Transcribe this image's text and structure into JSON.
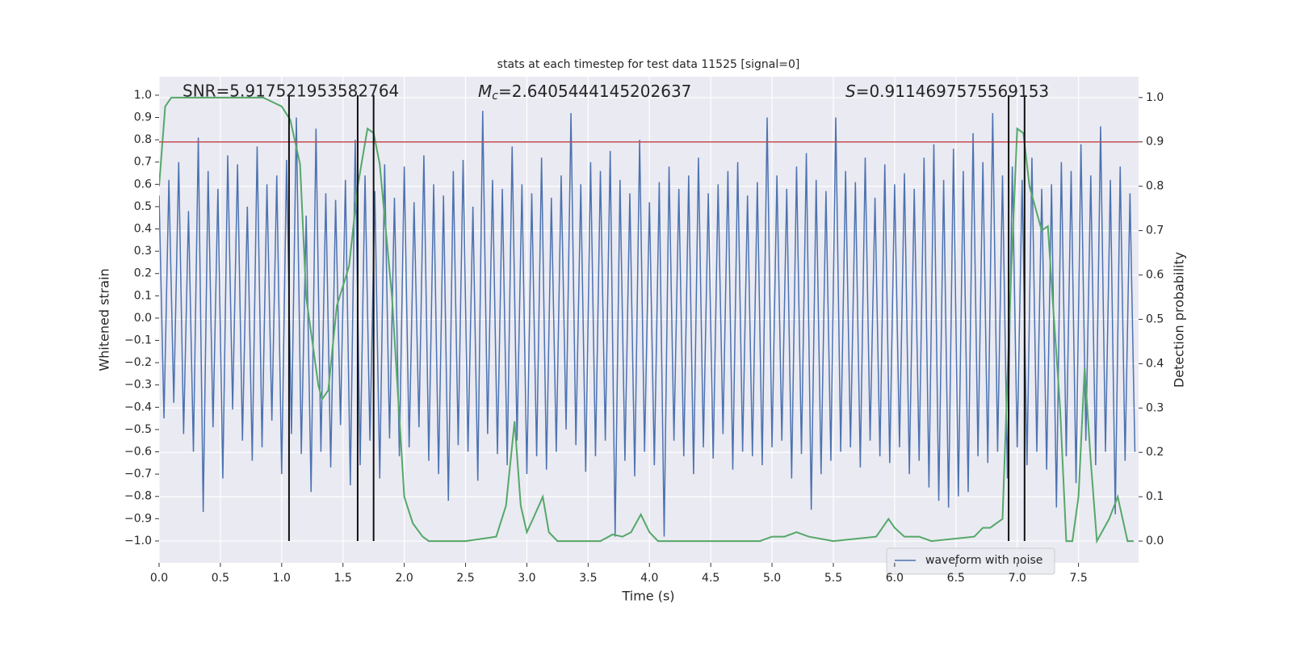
{
  "chart_data": {
    "type": "line",
    "title": "stats at each timestep for test data 11525 [signal=0]",
    "xlabel": "Time (s)",
    "ylabel": "Whitened strain",
    "y2label": "Detection probability",
    "annotations": [
      {
        "text": "SNR=5.917521953582764"
      },
      {
        "symbol": "M",
        "sub": "c",
        "text": "=2.6405444145202637"
      },
      {
        "symbol": "S",
        "text": "=0.9114697575569153"
      }
    ],
    "xlim": [
      0,
      7.99
    ],
    "ylim": [
      -1.098,
      1.083
    ],
    "y2lim": [
      -0.049,
      1.047
    ],
    "xticks": [
      {
        "value": 0,
        "label": "0.0"
      },
      0.5,
      {
        "value": 1,
        "label": "1.0"
      },
      1.5,
      {
        "value": 2,
        "label": "2.0"
      },
      2.5,
      {
        "value": 3,
        "label": "3.0"
      },
      3.5,
      {
        "value": 4,
        "label": "4.0"
      },
      4.5,
      {
        "value": 5,
        "label": "5.0"
      },
      5.5,
      {
        "value": 6,
        "label": "6.0"
      },
      6.5,
      {
        "value": 7,
        "label": "7.0"
      },
      7.5
    ],
    "yticks": [
      {
        "value": -1,
        "label": "−1.0"
      },
      {
        "value": -0.9,
        "label": "−0.9"
      },
      {
        "value": -0.8,
        "label": "−0.8"
      },
      {
        "value": -0.7,
        "label": "−0.7"
      },
      {
        "value": -0.6,
        "label": "−0.6"
      },
      {
        "value": -0.5,
        "label": "−0.5"
      },
      {
        "value": -0.4,
        "label": "−0.4"
      },
      {
        "value": -0.3,
        "label": "−0.3"
      },
      {
        "value": -0.2,
        "label": "−0.2"
      },
      {
        "value": -0.1,
        "label": "−0.1"
      },
      {
        "value": 0,
        "label": "0.0"
      },
      0.1,
      0.2,
      0.3,
      0.4,
      0.5,
      0.6,
      0.7,
      0.8,
      0.9,
      {
        "value": 1,
        "label": "1.0"
      }
    ],
    "y2ticks": [
      {
        "value": 0,
        "label": "0.0"
      },
      0.1,
      0.2,
      0.3,
      0.4,
      0.5,
      0.6,
      0.7,
      0.8,
      0.9,
      {
        "value": 1,
        "label": "1.0"
      }
    ],
    "grid": true,
    "legend": "lower right",
    "threshold": 0.9,
    "threshold_color": "#c44e52",
    "vlines": [
      1.06,
      1.62,
      1.75,
      6.93,
      7.06
    ],
    "vline_ylim": [
      -1.0,
      1.0
    ],
    "vline_color": "#111111",
    "series": [
      {
        "name": "waveform with noise",
        "color": "#4c72b0",
        "x": [
          0,
          0.04,
          0.08,
          0.12,
          0.16,
          0.2,
          0.24,
          0.28,
          0.32,
          0.36,
          0.4,
          0.44,
          0.48,
          0.52,
          0.56,
          0.6,
          0.64,
          0.68,
          0.72,
          0.76,
          0.8,
          0.84,
          0.88,
          0.92,
          0.96,
          1,
          1.04,
          1.08,
          1.12,
          1.16,
          1.2,
          1.24,
          1.28,
          1.32,
          1.36,
          1.4,
          1.44,
          1.48,
          1.52,
          1.56,
          1.6,
          1.64,
          1.68,
          1.72,
          1.76,
          1.8,
          1.84,
          1.88,
          1.92,
          1.96,
          2,
          2.04,
          2.08,
          2.12,
          2.16,
          2.2,
          2.24,
          2.28,
          2.32,
          2.36,
          2.4,
          2.44,
          2.48,
          2.52,
          2.56,
          2.6,
          2.64,
          2.68,
          2.72,
          2.76,
          2.8,
          2.84,
          2.88,
          2.92,
          2.96,
          3,
          3.04,
          3.08,
          3.12,
          3.16,
          3.2,
          3.24,
          3.28,
          3.32,
          3.36,
          3.4,
          3.44,
          3.48,
          3.52,
          3.56,
          3.6,
          3.64,
          3.68,
          3.72,
          3.76,
          3.8,
          3.84,
          3.88,
          3.92,
          3.96,
          4,
          4.04,
          4.08,
          4.12,
          4.16,
          4.2,
          4.24,
          4.28,
          4.32,
          4.36,
          4.4,
          4.44,
          4.48,
          4.52,
          4.56,
          4.6,
          4.64,
          4.68,
          4.72,
          4.76,
          4.8,
          4.84,
          4.88,
          4.92,
          4.96,
          5,
          5.04,
          5.08,
          5.12,
          5.16,
          5.2,
          5.24,
          5.28,
          5.32,
          5.36,
          5.4,
          5.44,
          5.48,
          5.52,
          5.56,
          5.6,
          5.64,
          5.68,
          5.72,
          5.76,
          5.8,
          5.84,
          5.88,
          5.92,
          5.96,
          6,
          6.04,
          6.08,
          6.12,
          6.16,
          6.2,
          6.24,
          6.28,
          6.32,
          6.36,
          6.4,
          6.44,
          6.48,
          6.52,
          6.56,
          6.6,
          6.64,
          6.68,
          6.72,
          6.76,
          6.8,
          6.84,
          6.88,
          6.92,
          6.96,
          7,
          7.04,
          7.08,
          7.12,
          7.16,
          7.2,
          7.24,
          7.28,
          7.32,
          7.36,
          7.4,
          7.44,
          7.48,
          7.52,
          7.56,
          7.6,
          7.64,
          7.68,
          7.72,
          7.76,
          7.8,
          7.84,
          7.88,
          7.92,
          7.96
        ],
        "values": [
          0.55,
          -0.45,
          0.62,
          -0.38,
          0.7,
          -0.52,
          0.48,
          -0.6,
          0.81,
          -0.87,
          0.66,
          -0.49,
          0.58,
          -0.72,
          0.73,
          -0.41,
          0.69,
          -0.55,
          0.5,
          -0.64,
          0.77,
          -0.58,
          0.6,
          -0.46,
          0.64,
          -0.7,
          0.71,
          -0.52,
          0.9,
          -0.61,
          0.46,
          -0.78,
          0.85,
          -0.6,
          0.56,
          -0.67,
          0.53,
          -0.48,
          0.62,
          -0.75,
          0.8,
          -0.66,
          0.64,
          -0.55,
          0.57,
          -0.72,
          0.69,
          -0.54,
          0.54,
          -0.62,
          0.68,
          -0.58,
          0.52,
          -0.49,
          0.73,
          -0.64,
          0.6,
          -0.7,
          0.55,
          -0.82,
          0.66,
          -0.57,
          0.71,
          -0.6,
          0.5,
          -0.73,
          0.93,
          -0.52,
          0.62,
          -0.61,
          0.58,
          -0.66,
          0.77,
          -0.55,
          0.6,
          -0.7,
          0.56,
          -0.62,
          0.72,
          -0.68,
          0.54,
          -0.6,
          0.64,
          -0.5,
          0.92,
          -0.57,
          0.6,
          -0.69,
          0.7,
          -0.62,
          0.66,
          -0.55,
          0.75,
          -0.98,
          0.62,
          -0.64,
          0.56,
          -0.71,
          0.8,
          -0.6,
          0.52,
          -0.66,
          0.61,
          -0.98,
          0.68,
          -0.55,
          0.58,
          -0.62,
          0.64,
          -0.7,
          0.72,
          -0.58,
          0.56,
          -0.63,
          0.6,
          -0.52,
          0.66,
          -0.68,
          0.7,
          -0.6,
          0.55,
          -0.62,
          0.61,
          -0.66,
          0.9,
          -0.58,
          0.64,
          -0.55,
          0.58,
          -0.72,
          0.68,
          -0.61,
          0.74,
          -0.86,
          0.62,
          -0.7,
          0.57,
          -0.64,
          0.9,
          -0.6,
          0.66,
          -0.58,
          0.61,
          -0.67,
          0.72,
          -0.55,
          0.54,
          -0.62,
          0.69,
          -0.65,
          0.6,
          -0.58,
          0.65,
          -0.7,
          0.58,
          -0.64,
          0.72,
          -0.76,
          0.78,
          -0.82,
          0.62,
          -0.85,
          0.76,
          -0.8,
          0.66,
          -0.78,
          0.83,
          -0.62,
          0.7,
          -0.65,
          0.92,
          -0.6,
          0.64,
          -0.72,
          0.68,
          -0.58,
          0.62,
          -0.66,
          0.72,
          -0.6,
          0.58,
          -0.68,
          0.6,
          -0.85,
          0.7,
          -0.62,
          0.66,
          -0.74,
          0.78,
          -0.55,
          0.64,
          -0.66,
          0.86,
          -0.6,
          0.62,
          -0.88,
          0.68,
          -0.64,
          0.56,
          -0.6
        ]
      },
      {
        "color": "#55a868",
        "axis": "y2",
        "x": [
          0,
          0.05,
          0.1,
          0.5,
          0.85,
          1,
          1.07,
          1.15,
          1.2,
          1.3,
          1.33,
          1.38,
          1.45,
          1.55,
          1.62,
          1.7,
          1.75,
          1.8,
          1.9,
          2,
          2.07,
          2.15,
          2.2,
          2.5,
          2.75,
          2.83,
          2.9,
          2.95,
          3,
          3.05,
          3.13,
          3.18,
          3.25,
          3.6,
          3.7,
          3.78,
          3.85,
          3.93,
          4,
          4.07,
          4.9,
          5,
          5.1,
          5.2,
          5.3,
          5.5,
          5.85,
          5.95,
          6,
          6.08,
          6.2,
          6.3,
          6.65,
          6.72,
          6.78,
          6.88,
          6.95,
          7,
          7.05,
          7.1,
          7.2,
          7.25,
          7.3,
          7.35,
          7.4,
          7.45,
          7.5,
          7.55,
          7.6,
          7.65,
          7.75,
          7.82,
          7.9,
          7.95
        ],
        "values": [
          0.8,
          0.98,
          1,
          1,
          1,
          0.98,
          0.95,
          0.85,
          0.55,
          0.35,
          0.32,
          0.34,
          0.53,
          0.62,
          0.8,
          0.93,
          0.92,
          0.85,
          0.55,
          0.1,
          0.04,
          0.01,
          0,
          0,
          0.01,
          0.08,
          0.27,
          0.08,
          0.02,
          0.05,
          0.1,
          0.02,
          0,
          0,
          0.015,
          0.01,
          0.02,
          0.06,
          0.02,
          0,
          0,
          0.01,
          0.01,
          0.02,
          0.01,
          0,
          0.01,
          0.05,
          0.03,
          0.01,
          0.01,
          0,
          0.01,
          0.03,
          0.03,
          0.05,
          0.6,
          0.93,
          0.92,
          0.8,
          0.7,
          0.71,
          0.5,
          0.3,
          0,
          0,
          0.1,
          0.39,
          0.18,
          0,
          0.05,
          0.1,
          0,
          0
        ]
      }
    ]
  }
}
